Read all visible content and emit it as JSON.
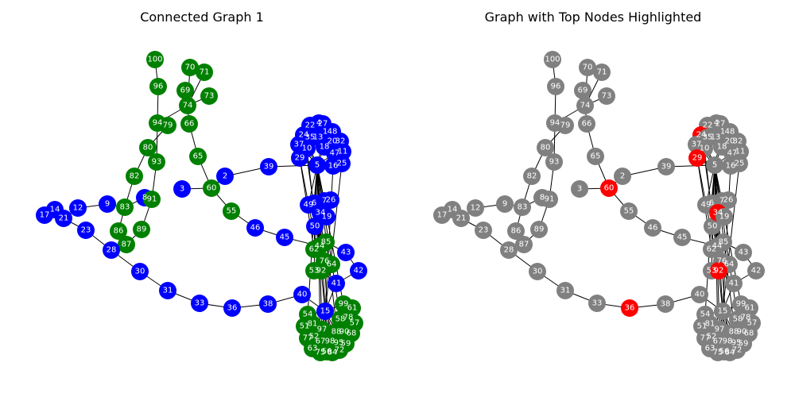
{
  "titles": {
    "left": "Connected Graph 1",
    "right": "Graph with Top Nodes Highlighted"
  },
  "colors": {
    "community_a": "#0000ff",
    "community_b": "#008000",
    "default": "#808080",
    "highlight": "#ff0000",
    "edge": "#000000",
    "label": "#ffffff"
  },
  "highlighted_nodes": [
    "60",
    "36",
    "29",
    "24",
    "34",
    "92"
  ],
  "nodes": [
    {
      "id": "100",
      "c": "b"
    },
    {
      "id": "96",
      "c": "b"
    },
    {
      "id": "70",
      "c": "b"
    },
    {
      "id": "71",
      "c": "b"
    },
    {
      "id": "69",
      "c": "b"
    },
    {
      "id": "73",
      "c": "b"
    },
    {
      "id": "74",
      "c": "b"
    },
    {
      "id": "94",
      "c": "b"
    },
    {
      "id": "79",
      "c": "b"
    },
    {
      "id": "66",
      "c": "b"
    },
    {
      "id": "80",
      "c": "b"
    },
    {
      "id": "93",
      "c": "b"
    },
    {
      "id": "65",
      "c": "b"
    },
    {
      "id": "82",
      "c": "b"
    },
    {
      "id": "8",
      "c": "a"
    },
    {
      "id": "91",
      "c": "b"
    },
    {
      "id": "83",
      "c": "b"
    },
    {
      "id": "3",
      "c": "a"
    },
    {
      "id": "60",
      "c": "b"
    },
    {
      "id": "2",
      "c": "a"
    },
    {
      "id": "39",
      "c": "a"
    },
    {
      "id": "86",
      "c": "b"
    },
    {
      "id": "89",
      "c": "b"
    },
    {
      "id": "87",
      "c": "b"
    },
    {
      "id": "55",
      "c": "b"
    },
    {
      "id": "46",
      "c": "a"
    },
    {
      "id": "45",
      "c": "a"
    },
    {
      "id": "17",
      "c": "a"
    },
    {
      "id": "14",
      "c": "a"
    },
    {
      "id": "21",
      "c": "a"
    },
    {
      "id": "12",
      "c": "a"
    },
    {
      "id": "9",
      "c": "a"
    },
    {
      "id": "23",
      "c": "a"
    },
    {
      "id": "28",
      "c": "a"
    },
    {
      "id": "30",
      "c": "a"
    },
    {
      "id": "31",
      "c": "a"
    },
    {
      "id": "33",
      "c": "a"
    },
    {
      "id": "36",
      "c": "a"
    },
    {
      "id": "38",
      "c": "a"
    },
    {
      "id": "40",
      "c": "a"
    },
    {
      "id": "41",
      "c": "a"
    },
    {
      "id": "42",
      "c": "a"
    },
    {
      "id": "43",
      "c": "a"
    },
    {
      "id": "15",
      "c": "a"
    },
    {
      "id": "50",
      "c": "a"
    },
    {
      "id": "49",
      "c": "a"
    },
    {
      "id": "6",
      "c": "a"
    },
    {
      "id": "7",
      "c": "a"
    },
    {
      "id": "26",
      "c": "a"
    },
    {
      "id": "34",
      "c": "a"
    },
    {
      "id": "19",
      "c": "a"
    },
    {
      "id": "85",
      "c": "b"
    },
    {
      "id": "44",
      "c": "b"
    },
    {
      "id": "62",
      "c": "b"
    },
    {
      "id": "76",
      "c": "b"
    },
    {
      "id": "64",
      "c": "b"
    },
    {
      "id": "53",
      "c": "b"
    },
    {
      "id": "92",
      "c": "b"
    },
    {
      "id": "4",
      "c": "a"
    },
    {
      "id": "22",
      "c": "a"
    },
    {
      "id": "27",
      "c": "a"
    },
    {
      "id": "24",
      "c": "a"
    },
    {
      "id": "35",
      "c": "a"
    },
    {
      "id": "13",
      "c": "a"
    },
    {
      "id": "1",
      "c": "a"
    },
    {
      "id": "48",
      "c": "a"
    },
    {
      "id": "37",
      "c": "a"
    },
    {
      "id": "10",
      "c": "a"
    },
    {
      "id": "18",
      "c": "a"
    },
    {
      "id": "20",
      "c": "a"
    },
    {
      "id": "32",
      "c": "a"
    },
    {
      "id": "47",
      "c": "a"
    },
    {
      "id": "11",
      "c": "a"
    },
    {
      "id": "29",
      "c": "a"
    },
    {
      "id": "5",
      "c": "a"
    },
    {
      "id": "16",
      "c": "a"
    },
    {
      "id": "25",
      "c": "a"
    },
    {
      "id": "54",
      "c": "b"
    },
    {
      "id": "99",
      "c": "b"
    },
    {
      "id": "61",
      "c": "b"
    },
    {
      "id": "58",
      "c": "b"
    },
    {
      "id": "78",
      "c": "b"
    },
    {
      "id": "57",
      "c": "b"
    },
    {
      "id": "51",
      "c": "b"
    },
    {
      "id": "81",
      "c": "b"
    },
    {
      "id": "97",
      "c": "b"
    },
    {
      "id": "88",
      "c": "b"
    },
    {
      "id": "90",
      "c": "b"
    },
    {
      "id": "68",
      "c": "b"
    },
    {
      "id": "77",
      "c": "b"
    },
    {
      "id": "52",
      "c": "b"
    },
    {
      "id": "67",
      "c": "b"
    },
    {
      "id": "98",
      "c": "b"
    },
    {
      "id": "95",
      "c": "b"
    },
    {
      "id": "59",
      "c": "b"
    },
    {
      "id": "63",
      "c": "b"
    },
    {
      "id": "75",
      "c": "b"
    },
    {
      "id": "56",
      "c": "b"
    },
    {
      "id": "84",
      "c": "b"
    },
    {
      "id": "72",
      "c": "b"
    }
  ],
  "edges": [
    [
      "100",
      "96"
    ],
    [
      "96",
      "94"
    ],
    [
      "70",
      "74"
    ],
    [
      "71",
      "74"
    ],
    [
      "69",
      "74"
    ],
    [
      "73",
      "74"
    ],
    [
      "74",
      "94"
    ],
    [
      "74",
      "66"
    ],
    [
      "94",
      "79"
    ],
    [
      "94",
      "93"
    ],
    [
      "79",
      "80"
    ],
    [
      "80",
      "82"
    ],
    [
      "93",
      "91"
    ],
    [
      "82",
      "83"
    ],
    [
      "83",
      "8"
    ],
    [
      "8",
      "91"
    ],
    [
      "91",
      "89"
    ],
    [
      "89",
      "87"
    ],
    [
      "83",
      "86"
    ],
    [
      "86",
      "87"
    ],
    [
      "66",
      "65"
    ],
    [
      "65",
      "60"
    ],
    [
      "3",
      "60"
    ],
    [
      "60",
      "2"
    ],
    [
      "2",
      "39"
    ],
    [
      "39",
      "5"
    ],
    [
      "60",
      "55"
    ],
    [
      "55",
      "46"
    ],
    [
      "46",
      "45"
    ],
    [
      "45",
      "44"
    ],
    [
      "17",
      "14"
    ],
    [
      "14",
      "21"
    ],
    [
      "21",
      "12"
    ],
    [
      "12",
      "9"
    ],
    [
      "9",
      "83"
    ],
    [
      "21",
      "23"
    ],
    [
      "23",
      "28"
    ],
    [
      "28",
      "87"
    ],
    [
      "28",
      "30"
    ],
    [
      "30",
      "31"
    ],
    [
      "31",
      "33"
    ],
    [
      "33",
      "36"
    ],
    [
      "36",
      "38"
    ],
    [
      "38",
      "40"
    ],
    [
      "40",
      "15"
    ],
    [
      "15",
      "41"
    ],
    [
      "41",
      "42"
    ],
    [
      "42",
      "43"
    ],
    [
      "43",
      "85"
    ],
    [
      "49",
      "6"
    ],
    [
      "6",
      "7"
    ],
    [
      "7",
      "26"
    ],
    [
      "6",
      "34"
    ],
    [
      "34",
      "19"
    ],
    [
      "34",
      "50"
    ],
    [
      "50",
      "85"
    ],
    [
      "85",
      "44"
    ],
    [
      "44",
      "62"
    ],
    [
      "62",
      "76"
    ],
    [
      "76",
      "64"
    ],
    [
      "53",
      "92"
    ],
    [
      "5",
      "49"
    ],
    [
      "5",
      "6"
    ],
    [
      "5",
      "7"
    ],
    [
      "5",
      "34"
    ],
    [
      "5",
      "50"
    ],
    [
      "5",
      "44"
    ],
    [
      "5",
      "62"
    ],
    [
      "5",
      "76"
    ],
    [
      "5",
      "53"
    ],
    [
      "5",
      "92"
    ],
    [
      "5",
      "15"
    ],
    [
      "5",
      "54"
    ],
    [
      "5",
      "99"
    ],
    [
      "5",
      "58"
    ],
    [
      "5",
      "97"
    ],
    [
      "5",
      "67"
    ],
    [
      "5",
      "98"
    ],
    [
      "5",
      "72"
    ],
    [
      "29",
      "92"
    ],
    [
      "29",
      "62"
    ],
    [
      "24",
      "44"
    ],
    [
      "10",
      "92"
    ],
    [
      "16",
      "15"
    ],
    [
      "25",
      "15"
    ],
    [
      "5",
      "29"
    ],
    [
      "5",
      "24"
    ],
    [
      "5",
      "10"
    ],
    [
      "5",
      "16"
    ],
    [
      "5",
      "25"
    ],
    [
      "5",
      "18"
    ],
    [
      "5",
      "47"
    ],
    [
      "5",
      "37"
    ],
    [
      "1",
      "5"
    ],
    [
      "92",
      "15"
    ],
    [
      "92",
      "41"
    ],
    [
      "15",
      "54"
    ],
    [
      "15",
      "99"
    ],
    [
      "15",
      "58"
    ],
    [
      "15",
      "97"
    ],
    [
      "15",
      "67"
    ],
    [
      "15",
      "98"
    ],
    [
      "15",
      "72"
    ],
    [
      "15",
      "56"
    ],
    [
      "15",
      "75"
    ],
    [
      "15",
      "88"
    ]
  ]
}
